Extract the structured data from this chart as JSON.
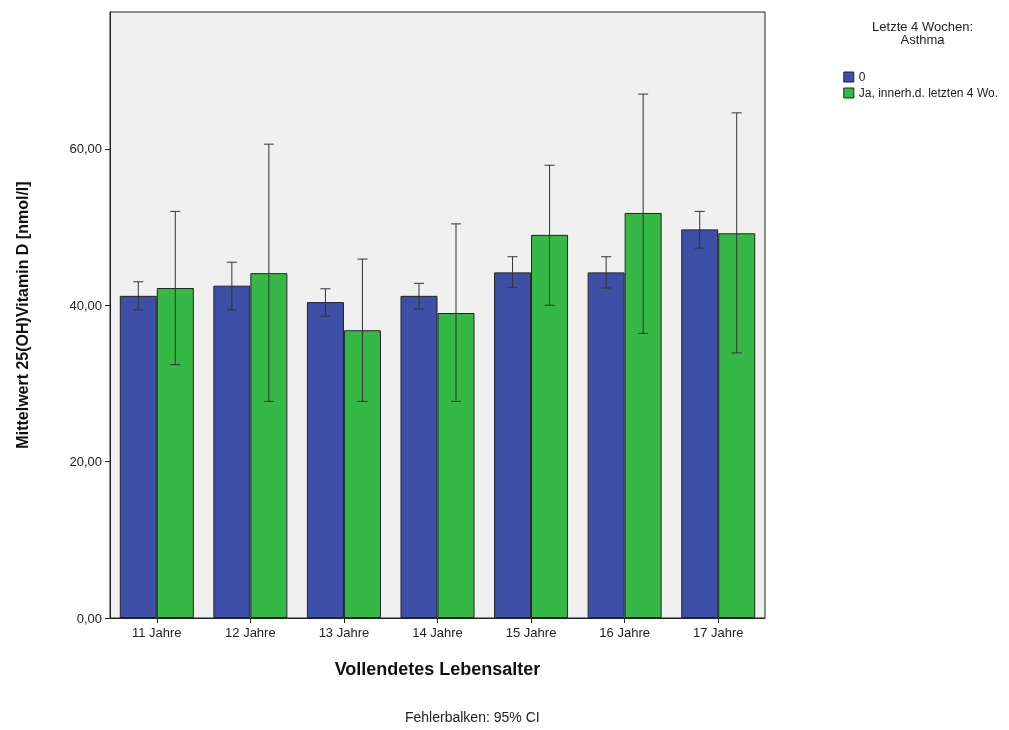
{
  "chart_data": {
    "type": "bar",
    "xlabel": "Vollendetes Lebensalter",
    "ylabel": "Mittelwert 25(OH)Vitamin D [nmol/l]",
    "legend_title": "Letzte 4 Wochen:\nAsthma",
    "legend": "top right",
    "grid": false,
    "categories": [
      "11 Jahre",
      "12 Jahre",
      "13 Jahre",
      "14 Jahre",
      "15 Jahre",
      "16 Jahre",
      "17 Jahre"
    ],
    "ylim": [
      0,
      77.5
    ],
    "yticks": [
      {
        "value": 0,
        "label": "0,00"
      },
      {
        "value": 20,
        "label": "20,00"
      },
      {
        "value": 40,
        "label": "40,00"
      },
      {
        "value": 60,
        "label": "60,00"
      }
    ],
    "series": [
      {
        "name": "0",
        "color": "#3d4fa6",
        "values": [
          41.2,
          42.5,
          40.4,
          41.2,
          44.2,
          44.2,
          49.7
        ],
        "errors": [
          [
            39.4,
            43.0
          ],
          [
            39.4,
            45.5
          ],
          [
            38.6,
            42.1
          ],
          [
            39.5,
            42.8
          ],
          [
            42.3,
            46.2
          ],
          [
            42.2,
            46.2
          ],
          [
            47.3,
            52.0
          ]
        ]
      },
      {
        "name": "Ja, innerh.d. letzten 4 Wo.",
        "color": "#35b845",
        "values": [
          42.2,
          44.1,
          36.8,
          39.0,
          49.0,
          51.8,
          49.2
        ],
        "errors": [
          [
            32.4,
            52.0
          ],
          [
            27.7,
            60.6
          ],
          [
            27.7,
            45.9
          ],
          [
            27.7,
            50.4
          ],
          [
            40.0,
            57.9
          ],
          [
            36.4,
            67.0
          ],
          [
            33.9,
            64.6
          ]
        ]
      }
    ],
    "annotations": [
      "Fehlerbalken: 95% CI"
    ]
  }
}
